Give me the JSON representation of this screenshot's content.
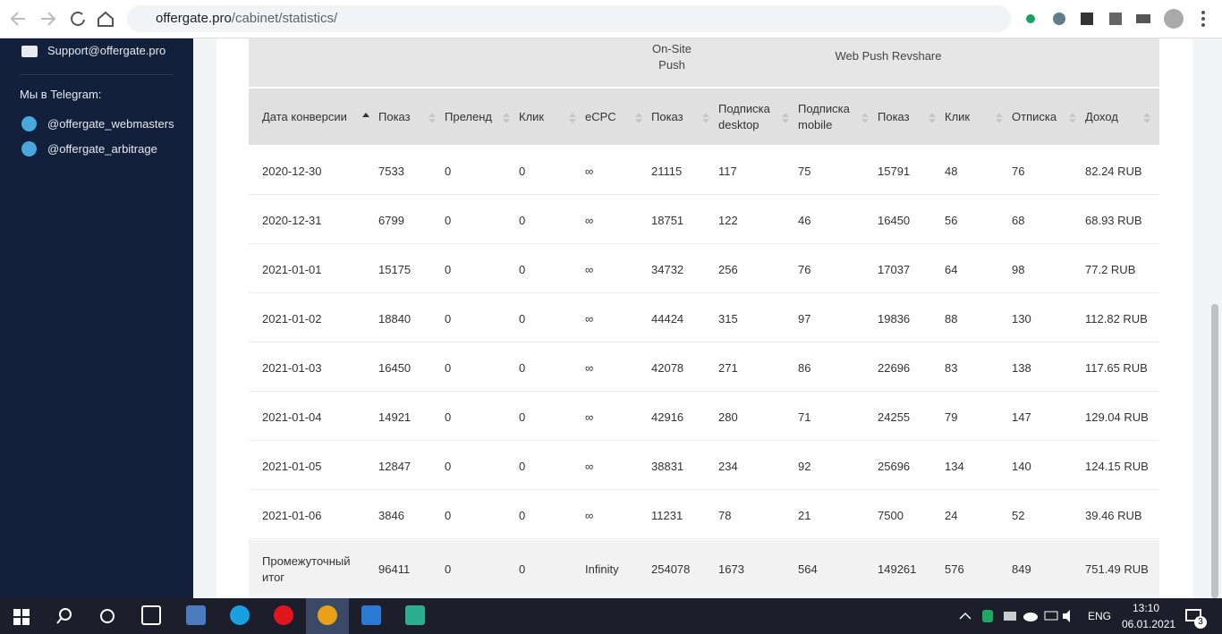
{
  "browser": {
    "url_host": "offergate.pro",
    "url_path": "/cabinet/statistics/"
  },
  "sidebar": {
    "support": "Support@offergate.pro",
    "telegram_title": "Мы в Telegram:",
    "telegram_links": [
      "@offergate_webmasters",
      "@offergate_arbitrage"
    ]
  },
  "table": {
    "group_headers": [
      "On-Site Push",
      "Web Push Revshare"
    ],
    "columns": [
      "Дата конверсии",
      "Показ",
      "Преленд",
      "Клик",
      "eCPC",
      "Показ",
      "Подписка desktop",
      "Подписка mobile",
      "Показ",
      "Клик",
      "Отписка",
      "Доход"
    ],
    "rows": [
      [
        "2020-12-30",
        "7533",
        "0",
        "0",
        "∞",
        "21115",
        "117",
        "75",
        "15791",
        "48",
        "76",
        "82.24 RUB"
      ],
      [
        "2020-12-31",
        "6799",
        "0",
        "0",
        "∞",
        "18751",
        "122",
        "46",
        "16450",
        "56",
        "68",
        "68.93 RUB"
      ],
      [
        "2021-01-01",
        "15175",
        "0",
        "0",
        "∞",
        "34732",
        "256",
        "76",
        "17037",
        "64",
        "98",
        "77.2 RUB"
      ],
      [
        "2021-01-02",
        "18840",
        "0",
        "0",
        "∞",
        "44424",
        "315",
        "97",
        "19836",
        "88",
        "130",
        "112.82 RUB"
      ],
      [
        "2021-01-03",
        "16450",
        "0",
        "0",
        "∞",
        "42078",
        "271",
        "86",
        "22696",
        "83",
        "138",
        "117.65 RUB"
      ],
      [
        "2021-01-04",
        "14921",
        "0",
        "0",
        "∞",
        "42916",
        "280",
        "71",
        "24255",
        "79",
        "147",
        "129.04 RUB"
      ],
      [
        "2021-01-05",
        "12847",
        "0",
        "0",
        "∞",
        "38831",
        "234",
        "92",
        "25696",
        "134",
        "140",
        "124.15 RUB"
      ],
      [
        "2021-01-06",
        "3846",
        "0",
        "0",
        "∞",
        "11231",
        "78",
        "21",
        "7500",
        "24",
        "52",
        "39.46 RUB"
      ]
    ],
    "subtotal": [
      "Промежуточный итог",
      "96411",
      "0",
      "0",
      "Infinity",
      "254078",
      "1673",
      "564",
      "149261",
      "576",
      "849",
      "751.49 RUB"
    ]
  },
  "taskbar": {
    "lang": "ENG",
    "time": "13:10",
    "date": "06.01.2021",
    "notifications": "3"
  }
}
